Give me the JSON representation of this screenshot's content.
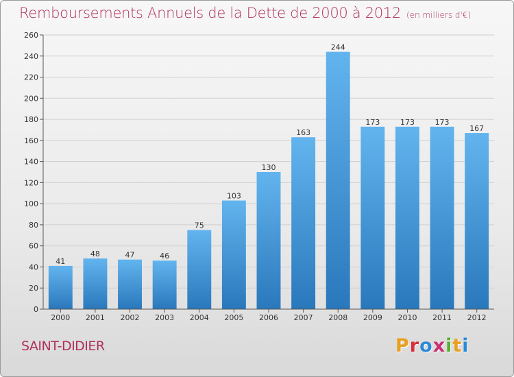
{
  "header": {
    "title": "Remboursements Annuels de la Dette de 2000 à 2012",
    "unit": "(en milliers d'€)"
  },
  "footer": {
    "commune": "SAINT-DIDIER",
    "logo": "Proxiti",
    "logo_colors": [
      "#e8a020",
      "#d6303a",
      "#2a8ad6",
      "#c83070",
      "#58b030",
      "#e8a020",
      "#2a8ad6"
    ]
  },
  "colors": {
    "title": "#b0305a",
    "bar_top": "#62b4ee",
    "bar_bottom": "#2a78bc",
    "grid": "#cfcfcf"
  },
  "chart_data": {
    "type": "bar",
    "title": "Remboursements Annuels de la Dette de 2000 à 2012",
    "categories": [
      "2000",
      "2001",
      "2002",
      "2003",
      "2004",
      "2005",
      "2006",
      "2007",
      "2008",
      "2009",
      "2010",
      "2011",
      "2012"
    ],
    "values": [
      41,
      48,
      47,
      46,
      75,
      103,
      130,
      163,
      244,
      173,
      173,
      173,
      167
    ],
    "yticks": [
      0,
      20,
      40,
      60,
      80,
      100,
      120,
      140,
      160,
      180,
      200,
      220,
      240,
      260
    ],
    "ylim": [
      0,
      260
    ],
    "grid": true,
    "xlabel": "",
    "ylabel": ""
  }
}
